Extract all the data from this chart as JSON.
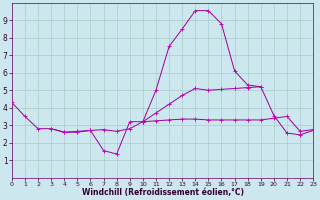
{
  "background_color": "#cce8ee",
  "grid_color": "#aacccc",
  "line_color": "#990099",
  "marker_color": "#cc00cc",
  "xlabel": "Windchill (Refroidissement éolien,°C)",
  "xlim": [
    0,
    23
  ],
  "ylim": [
    0,
    10
  ],
  "xticks": [
    0,
    1,
    2,
    3,
    4,
    5,
    6,
    7,
    8,
    9,
    10,
    11,
    12,
    13,
    14,
    15,
    16,
    17,
    18,
    19,
    20,
    21,
    22,
    23
  ],
  "yticks": [
    1,
    2,
    3,
    4,
    5,
    6,
    7,
    8,
    9
  ],
  "series": [
    [
      4.3,
      3.5,
      2.8,
      2.8,
      2.6,
      2.6,
      2.7,
      1.55,
      1.35,
      3.2,
      3.2,
      null,
      null,
      null,
      null,
      null,
      null,
      null,
      null,
      null,
      null,
      null,
      null,
      null
    ],
    [
      null,
      null,
      null,
      2.8,
      2.6,
      2.65,
      2.7,
      2.75,
      2.65,
      2.8,
      3.2,
      3.25,
      3.3,
      3.35,
      3.35,
      3.3,
      3.3,
      3.3,
      3.3,
      3.3,
      3.4,
      3.5,
      2.65,
      2.75
    ],
    [
      null,
      null,
      null,
      null,
      null,
      null,
      null,
      null,
      null,
      null,
      3.2,
      5.0,
      7.5,
      8.5,
      9.55,
      9.55,
      8.8,
      6.1,
      5.3,
      5.2,
      null,
      null,
      null,
      null
    ],
    [
      null,
      null,
      null,
      null,
      null,
      null,
      null,
      null,
      null,
      null,
      3.2,
      3.7,
      4.2,
      4.7,
      5.1,
      5.0,
      5.05,
      5.1,
      5.15,
      5.2,
      3.55,
      2.55,
      2.45,
      2.7
    ]
  ]
}
